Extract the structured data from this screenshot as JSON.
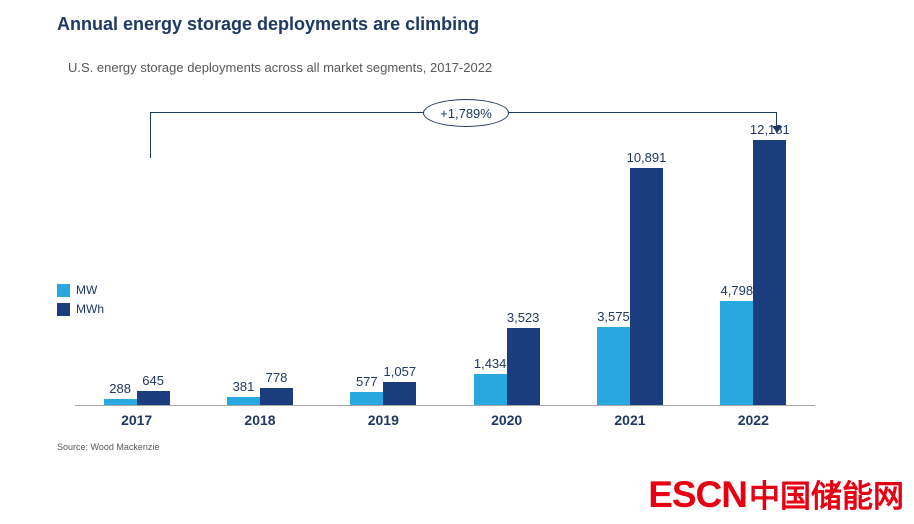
{
  "header": {
    "title": "Annual energy storage deployments are climbing",
    "subtitle": "U.S. energy storage deployments across all market segments, 2017-2022"
  },
  "chart_data": {
    "type": "bar",
    "categories": [
      "2017",
      "2018",
      "2019",
      "2020",
      "2021",
      "2022"
    ],
    "series": [
      {
        "name": "MW",
        "color": "#29A8E0",
        "values": [
          288,
          381,
          577,
          1434,
          3575,
          4798
        ],
        "labels": [
          "288",
          "381",
          "577",
          "1,434",
          "3,575",
          "4,798"
        ]
      },
      {
        "name": "MWh",
        "color": "#1B3D7E",
        "values": [
          645,
          778,
          1057,
          3523,
          10891,
          12181
        ],
        "labels": [
          "645",
          "778",
          "1,057",
          "3,523",
          "10,891",
          "12,181"
        ]
      }
    ],
    "annotation": "+1,789%",
    "ylim": [
      0,
      12181
    ],
    "grid": false,
    "legend_position": "middle-left"
  },
  "source": "Source: Wood Mackenzie",
  "footer_logo": {
    "escn": "ESCN",
    "chinese": "中国储能网"
  },
  "colors": {
    "mw": "#29A8E0",
    "mwh": "#1B3D7E",
    "title": "#1F3864",
    "accent_red": "#E60012",
    "subtitle_gray": "#595959"
  }
}
